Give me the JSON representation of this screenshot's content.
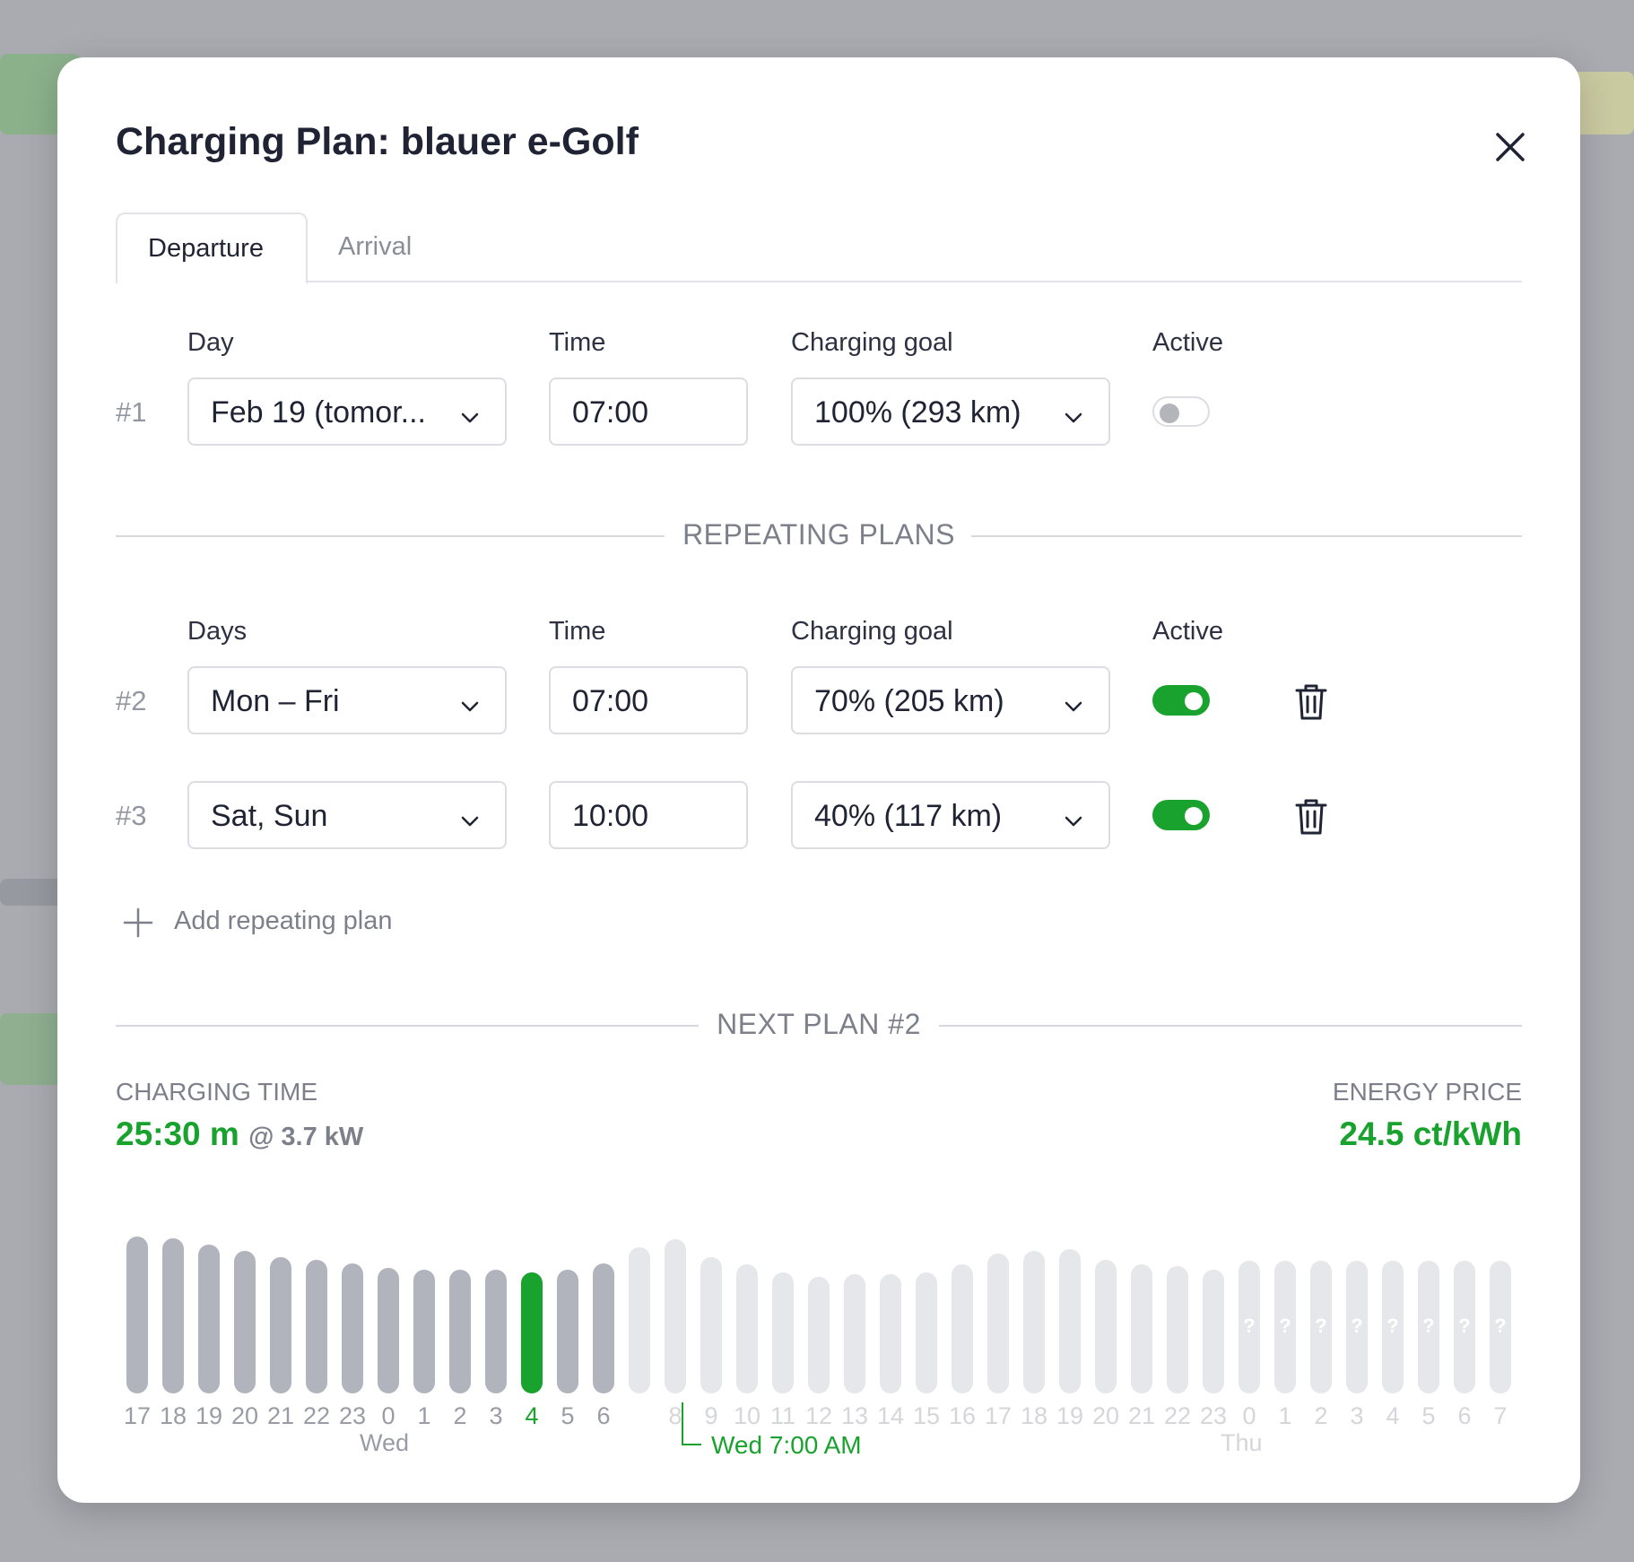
{
  "modal": {
    "title": "Charging Plan: blauer e-Golf",
    "tabs": [
      "Departure",
      "Arrival"
    ]
  },
  "single_plan": {
    "labels": {
      "day": "Day",
      "time": "Time",
      "goal": "Charging goal",
      "active": "Active"
    },
    "number": "#1",
    "day": "Feb 19 (tomor...",
    "time": "07:00",
    "goal": "100% (293 km)",
    "active": false
  },
  "repeating": {
    "section_title": "REPEATING PLANS",
    "labels": {
      "days": "Days",
      "time": "Time",
      "goal": "Charging goal",
      "active": "Active"
    },
    "plans": [
      {
        "number": "#2",
        "days": "Mon – Fri",
        "time": "07:00",
        "goal": "70% (205 km)",
        "active": true
      },
      {
        "number": "#3",
        "days": "Sat, Sun",
        "time": "10:00",
        "goal": "40% (117 km)",
        "active": true
      }
    ],
    "add_label": "Add repeating plan"
  },
  "next_plan": {
    "section_title": "NEXT PLAN #2",
    "charging_time_label": "CHARGING TIME",
    "charging_time": "25:30 m",
    "power": "@ 3.7 kW",
    "energy_price_label": "ENERGY PRICE",
    "energy_price": "24.5 ct/kWh",
    "target_label": "Wed 7:00 AM"
  },
  "chart_data": {
    "type": "bar",
    "hours": [
      "17",
      "18",
      "19",
      "20",
      "21",
      "22",
      "23",
      "0",
      "1",
      "2",
      "3",
      "4",
      "5",
      "6",
      "7",
      "8",
      "9",
      "10",
      "11",
      "12",
      "13",
      "14",
      "15",
      "16",
      "17",
      "18",
      "19",
      "20",
      "21",
      "22",
      "23",
      "0",
      "1",
      "2",
      "3",
      "4",
      "5",
      "6",
      "7"
    ],
    "values": [
      1.0,
      0.99,
      0.95,
      0.91,
      0.87,
      0.85,
      0.83,
      0.8,
      0.79,
      0.79,
      0.79,
      0.77,
      0.79,
      0.83,
      0.93,
      0.98,
      0.87,
      0.82,
      0.77,
      0.74,
      0.76,
      0.76,
      0.77,
      0.82,
      0.89,
      0.91,
      0.92,
      0.85,
      0.82,
      0.81,
      0.79,
      null,
      null,
      null,
      null,
      null,
      null,
      null,
      null
    ],
    "states": [
      "past",
      "past",
      "past",
      "past",
      "past",
      "past",
      "past",
      "past",
      "past",
      "past",
      "past",
      "cur",
      "past",
      "past",
      "future",
      "future",
      "future",
      "future",
      "future",
      "future",
      "future",
      "future",
      "future",
      "future",
      "future",
      "future",
      "future",
      "future",
      "future",
      "future",
      "future",
      "unknown",
      "unknown",
      "unknown",
      "unknown",
      "unknown",
      "unknown",
      "unknown",
      "unknown"
    ],
    "show_hour_label": [
      true,
      true,
      true,
      true,
      true,
      true,
      true,
      true,
      true,
      true,
      true,
      true,
      true,
      true,
      false,
      true,
      true,
      true,
      true,
      true,
      true,
      true,
      true,
      true,
      true,
      true,
      true,
      true,
      true,
      true,
      true,
      true,
      true,
      true,
      true,
      true,
      true,
      true,
      true
    ],
    "unknown_marker": "?",
    "day_labels": [
      {
        "text": "Wed",
        "at_index": 7,
        "state": "past"
      },
      {
        "text": "Thu",
        "at_index": 31,
        "state": "future"
      }
    ],
    "target_index": 14
  }
}
